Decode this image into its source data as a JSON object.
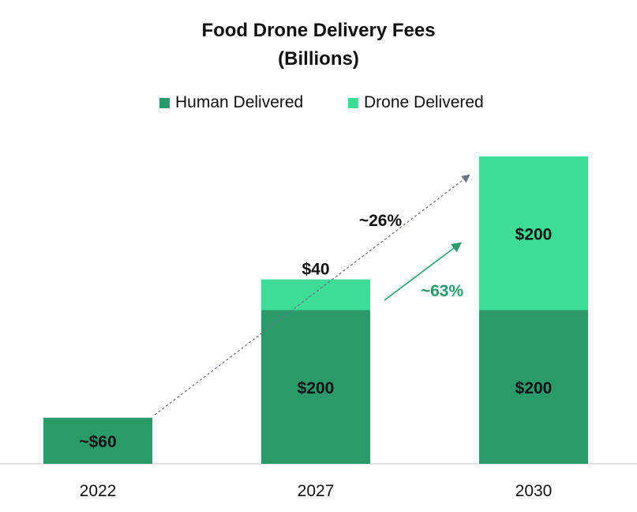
{
  "chart_data": {
    "type": "bar",
    "stacked": true,
    "title": "Food Drone Delivery Fees",
    "subtitle": "(Billions)",
    "categories": [
      "2022",
      "2027",
      "2030"
    ],
    "series": [
      {
        "name": "Human Delivered",
        "values": [
          60,
          200,
          200
        ],
        "color": "#2a9a6b",
        "labels": [
          "~$60",
          "$200",
          "$200"
        ]
      },
      {
        "name": "Drone Delivered",
        "values": [
          0,
          40,
          200
        ],
        "color": "#3ddc97",
        "labels": [
          "",
          "$40",
          "$200"
        ]
      }
    ],
    "annotations": [
      {
        "text": "~26%",
        "color": "#111111",
        "arrow_color": "#6b7280",
        "style": "dashed",
        "from_category": "2022",
        "to_category": "2030"
      },
      {
        "text": "~63%",
        "color": "#2a9a6b",
        "arrow_color": "#2a9a6b",
        "style": "solid",
        "from_category": "2027",
        "to_category": "2030"
      }
    ],
    "legend_position": "top",
    "grid": false
  }
}
